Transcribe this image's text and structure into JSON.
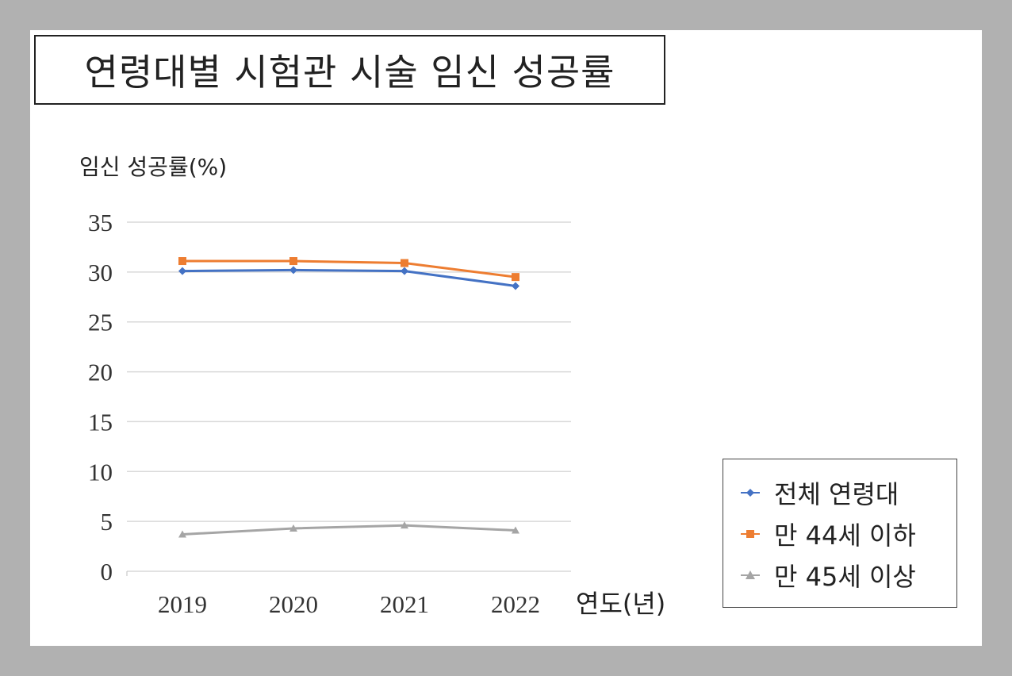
{
  "title": "연령대별 시험관 시술 임신 성공률",
  "chart_data": {
    "type": "line",
    "ylabel": "임신 성공률(%)",
    "xlabel": "연도(년)",
    "categories": [
      "2019",
      "2020",
      "2021",
      "2022"
    ],
    "ylim": [
      0,
      35
    ],
    "yticks": [
      0,
      5,
      10,
      15,
      20,
      25,
      30,
      35
    ],
    "grid": true,
    "legend_position": "right-bottom",
    "series": [
      {
        "name": "전체 연령대",
        "values": [
          30.1,
          30.2,
          30.1,
          28.6
        ],
        "color": "#4472c4",
        "marker": "diamond"
      },
      {
        "name": "만 44세 이하",
        "values": [
          31.1,
          31.1,
          30.9,
          29.5
        ],
        "color": "#ed7d31",
        "marker": "square"
      },
      {
        "name": "만 45세 이상",
        "values": [
          3.7,
          4.3,
          4.6,
          4.1
        ],
        "color": "#a5a5a5",
        "marker": "triangle"
      }
    ]
  }
}
